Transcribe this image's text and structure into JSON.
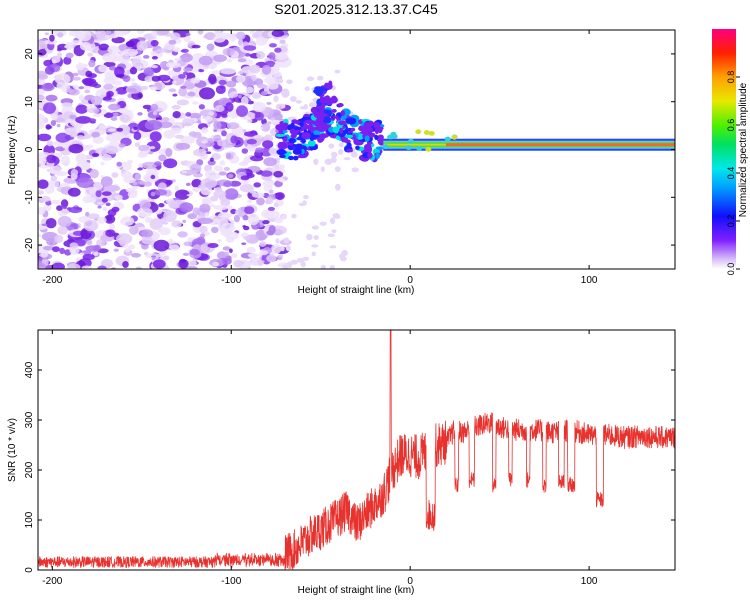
{
  "title": "S201.2025.312.13.37.C45",
  "chart_data": [
    {
      "type": "heatmap",
      "xlabel": "Height of straight line (km)",
      "ylabel": "Frequency (Hz)",
      "xlim": [
        -208,
        148
      ],
      "ylim": [
        -25,
        25
      ],
      "xticks": [
        -200,
        -100,
        0,
        100
      ],
      "yticks": [
        -20,
        -10,
        0,
        10,
        20
      ],
      "colorbar": {
        "label": "Normalized spectral amplitude",
        "range": [
          0,
          1
        ],
        "ticks": [
          "0.0",
          "0.2",
          "0.4",
          "0.6",
          "0.8"
        ]
      },
      "regions": [
        {
          "name": "noise",
          "x": [
            -208,
            -73
          ],
          "freq_range": [
            -25,
            25
          ],
          "amplitude": 0.05
        },
        {
          "name": "scattered signal",
          "x": [
            -73,
            -15
          ],
          "freq_range": [
            -5,
            12
          ],
          "amplitude": 0.15
        },
        {
          "name": "ridge",
          "x": [
            -15,
            148
          ],
          "frequency": 1,
          "amplitude": 0.9
        }
      ]
    },
    {
      "type": "line",
      "xlabel": "Height of straight line (km)",
      "ylabel": "SNR (10 * v/v)",
      "xlim": [
        -208,
        148
      ],
      "ylim": [
        0,
        480
      ],
      "xticks": [
        -200,
        -100,
        0,
        100
      ],
      "yticks": [
        0,
        100,
        200,
        300,
        400
      ],
      "color": "#e8322e",
      "envelope": {
        "x": [
          -208,
          -180,
          -150,
          -110,
          -90,
          -75,
          -65,
          -55,
          -50,
          -42,
          -35,
          -30,
          -25,
          -20,
          -15,
          -10,
          -5,
          0,
          5,
          10,
          15,
          20,
          25,
          30,
          35,
          40,
          45,
          50,
          60,
          70,
          80,
          90,
          100,
          110,
          120,
          130,
          140,
          148
        ],
        "values": [
          15,
          15,
          15,
          20,
          22,
          25,
          40,
          70,
          80,
          100,
          120,
          90,
          110,
          130,
          150,
          200,
          230,
          230,
          225,
          240,
          250,
          255,
          280,
          275,
          285,
          290,
          295,
          285,
          280,
          280,
          275,
          280,
          270,
          270,
          265,
          268,
          265,
          265
        ]
      },
      "spike": {
        "x": -11,
        "value": 480
      },
      "dips": [
        {
          "x": [
            9,
            14
          ],
          "value": 110
        },
        {
          "x": [
            25,
            27
          ],
          "value": 170
        },
        {
          "x": [
            33,
            36
          ],
          "value": 180
        },
        {
          "x": [
            46,
            48
          ],
          "value": 170
        },
        {
          "x": [
            55,
            57
          ],
          "value": 180
        },
        {
          "x": [
            65,
            67
          ],
          "value": 180
        },
        {
          "x": [
            74,
            76
          ],
          "value": 170
        },
        {
          "x": [
            83,
            86
          ],
          "value": 175
        },
        {
          "x": [
            88,
            92
          ],
          "value": 170
        },
        {
          "x": [
            104,
            108
          ],
          "value": 140
        }
      ]
    }
  ]
}
